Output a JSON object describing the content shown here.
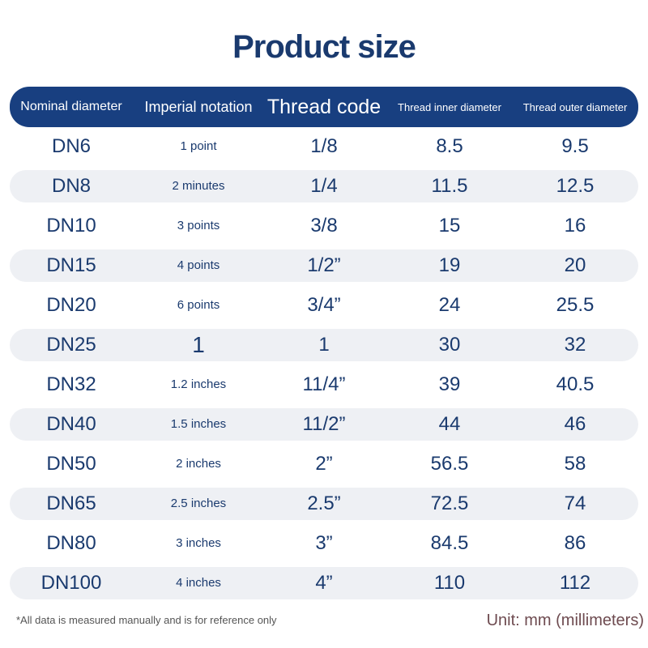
{
  "header": {
    "title": "Product size"
  },
  "table": {
    "columns": [
      "Nominal diameter",
      "Imperial notation",
      "Thread code",
      "Thread inner diameter",
      "Thread outer diameter"
    ],
    "rows": [
      [
        "DN6",
        "1 point",
        "1/8",
        "8.5",
        "9.5"
      ],
      [
        "DN8",
        "2 minutes",
        "1/4",
        "11.5",
        "12.5"
      ],
      [
        "DN10",
        "3 points",
        "3/8",
        "15",
        "16"
      ],
      [
        "DN15",
        "4 points",
        "1/2”",
        "19",
        "20"
      ],
      [
        "DN20",
        "6 points",
        "3/4”",
        "24",
        "25.5"
      ],
      [
        "DN25",
        "1",
        "1",
        "30",
        "32"
      ],
      [
        "DN32",
        "1.2 inches",
        "11/4”",
        "39",
        "40.5"
      ],
      [
        "DN40",
        "1.5 inches",
        "11/2”",
        "44",
        "46"
      ],
      [
        "DN50",
        "2 inches",
        "2”",
        "56.5",
        "58"
      ],
      [
        "DN65",
        "2.5 inches",
        "2.5”",
        "72.5",
        "74"
      ],
      [
        "DN80",
        "3 inches",
        "3”",
        "84.5",
        "86"
      ],
      [
        "DN100",
        "4 inches",
        "4”",
        "110",
        "112"
      ]
    ]
  },
  "footer": {
    "note": "*All data is measured manually and is for reference only",
    "unit": "Unit: mm (millimeters)"
  }
}
